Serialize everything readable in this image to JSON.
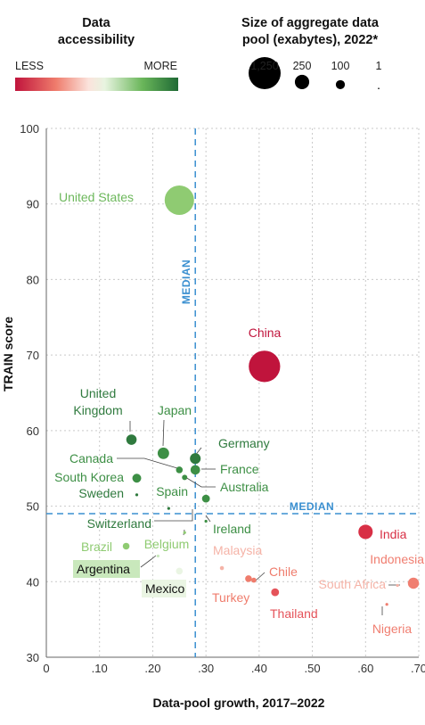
{
  "chart_data": {
    "type": "scatter",
    "xlabel": "Data-pool growth, 2017–2022",
    "ylabel": "TRAIN score",
    "xlim": [
      0,
      0.7
    ],
    "ylim": [
      30,
      100
    ],
    "x_ticks": [
      0,
      0.1,
      0.2,
      0.3,
      0.4,
      0.5,
      0.6,
      0.7
    ],
    "x_tick_labels": [
      "0",
      ".10",
      ".20",
      ".30",
      ".40",
      ".50",
      ".60",
      ".70"
    ],
    "y_ticks": [
      30,
      40,
      50,
      60,
      70,
      80,
      90,
      100
    ],
    "y_tick_labels": [
      "30",
      "40",
      "50",
      "60",
      "70",
      "80",
      "90",
      "100"
    ],
    "grid": true,
    "median_x": 0.28,
    "median_y": 49,
    "median_label": "MEDIAN",
    "legend": {
      "color_title_lines": [
        "Data",
        "accessibility"
      ],
      "color_low": "LESS",
      "color_high": "MORE",
      "size_title_lines": [
        "Size of aggregate data",
        "pool (exabytes), 2022*"
      ],
      "size_values": [
        1250,
        250,
        100,
        1
      ],
      "size_labels": [
        "1,250",
        "250",
        "100",
        "1"
      ]
    },
    "points": [
      {
        "label": "United States",
        "x": 0.25,
        "y": 90.5,
        "size": 1050,
        "color": "#8fcb72"
      },
      {
        "label": "China",
        "x": 0.41,
        "y": 68.5,
        "size": 1200,
        "color": "#c0143c"
      },
      {
        "label": "United Kingdom",
        "x": 0.16,
        "y": 58.8,
        "size": 130,
        "color": "#2f7a3e"
      },
      {
        "label": "Japan",
        "x": 0.22,
        "y": 57.0,
        "size": 160,
        "color": "#3d8f45"
      },
      {
        "label": "Germany",
        "x": 0.28,
        "y": 56.3,
        "size": 140,
        "color": "#2f7a3e"
      },
      {
        "label": "Canada",
        "x": 0.25,
        "y": 54.8,
        "size": 55,
        "color": "#3d8f45"
      },
      {
        "label": "France",
        "x": 0.28,
        "y": 54.8,
        "size": 110,
        "color": "#3d8f45"
      },
      {
        "label": "Australia",
        "x": 0.26,
        "y": 53.8,
        "size": 35,
        "color": "#3d8f45"
      },
      {
        "label": "South Korea",
        "x": 0.17,
        "y": 53.7,
        "size": 95,
        "color": "#3d8f45"
      },
      {
        "label": "Sweden",
        "x": 0.17,
        "y": 51.5,
        "size": 10,
        "color": "#2f7a3e"
      },
      {
        "label": "Spain",
        "x": 0.3,
        "y": 51.0,
        "size": 75,
        "color": "#3d8f45"
      },
      {
        "label": "Switzerland",
        "x": 0.23,
        "y": 49.7,
        "size": 3,
        "color": "#2f7a3e"
      },
      {
        "label": "Ireland",
        "x": 0.3,
        "y": 48.0,
        "size": 3,
        "color": "#3d8f45"
      },
      {
        "label": "Brazil",
        "x": 0.15,
        "y": 44.7,
        "size": 55,
        "color": "#8fcb72"
      },
      {
        "label": "Belgium",
        "x": 0.26,
        "y": 46.5,
        "size": 3,
        "color": "#8fcb72"
      },
      {
        "label": "Argentina",
        "x": 0.21,
        "y": 43.4,
        "size": 10,
        "color": "#c9e8bc"
      },
      {
        "label": "Mexico",
        "x": 0.25,
        "y": 41.4,
        "size": 55,
        "color": "#eaf5e3"
      },
      {
        "label": "Malaysia",
        "x": 0.33,
        "y": 41.8,
        "size": 20,
        "color": "#f5b3a7"
      },
      {
        "label": "Chile",
        "x": 0.39,
        "y": 40.2,
        "size": 30,
        "color": "#ef7c6c"
      },
      {
        "label": "Turkey",
        "x": 0.38,
        "y": 40.4,
        "size": 55,
        "color": "#ef7c6c"
      },
      {
        "label": "Thailand",
        "x": 0.43,
        "y": 38.6,
        "size": 75,
        "color": "#e5535a"
      },
      {
        "label": "India",
        "x": 0.6,
        "y": 46.6,
        "size": 250,
        "color": "#d82f45"
      },
      {
        "label": "Indonesia",
        "x": 0.69,
        "y": 39.8,
        "size": 150,
        "color": "#f07e70"
      },
      {
        "label": "South Africa",
        "x": 0.66,
        "y": 39.5,
        "size": 3,
        "color": "#f5b3a7"
      },
      {
        "label": "Nigeria",
        "x": 0.64,
        "y": 37.0,
        "size": 3,
        "color": "#f07e70"
      }
    ]
  }
}
